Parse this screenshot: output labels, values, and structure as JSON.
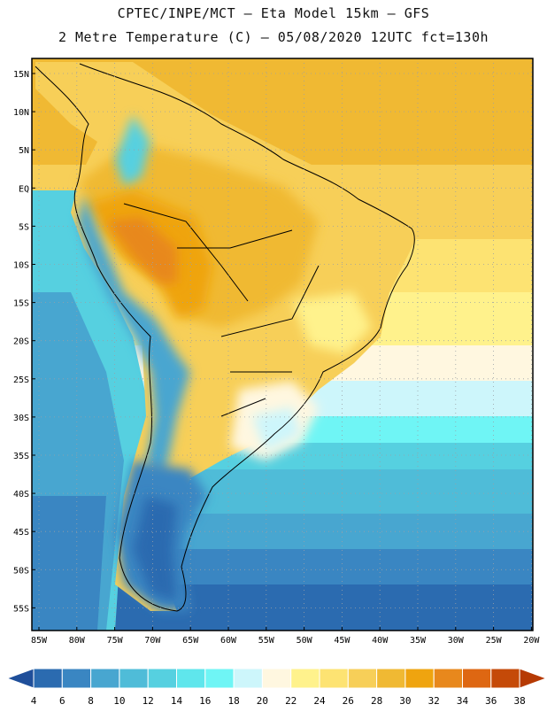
{
  "title": {
    "line1": "CPTEC/INPE/MCT –  Eta Model 15km – GFS",
    "line2": "2 Metre Temperature (C) – 05/08/2020 12UTC fct=130h"
  },
  "map": {
    "lat_labels": [
      "15N",
      "10N",
      "5N",
      "EQ",
      "5S",
      "10S",
      "15S",
      "20S",
      "25S",
      "30S",
      "35S",
      "40S",
      "45S",
      "50S",
      "55S"
    ],
    "lon_labels": [
      "85W",
      "80W",
      "75W",
      "70W",
      "65W",
      "60W",
      "55W",
      "50W",
      "45W",
      "40W",
      "35W",
      "30W",
      "25W",
      "20W"
    ]
  },
  "legend": {
    "values": [
      "4",
      "6",
      "8",
      "10",
      "12",
      "14",
      "16",
      "18",
      "20",
      "22",
      "24",
      "26",
      "28",
      "30",
      "32",
      "34",
      "36",
      "38"
    ],
    "colors": [
      "#1f4f9a",
      "#2b6bb0",
      "#3a86c2",
      "#48a6d0",
      "#4fbcd8",
      "#56d0e0",
      "#5fe6ec",
      "#6ff5f5",
      "#cdf6fb",
      "#fff7e0",
      "#fff28c",
      "#fde372",
      "#f7cf58",
      "#f0b933",
      "#efa40f",
      "#e8881c",
      "#de6712",
      "#c54a08",
      "#b63a04"
    ]
  }
}
